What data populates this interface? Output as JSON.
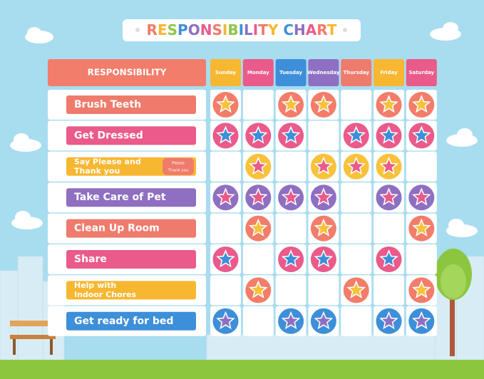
{
  "title": "RESPONSIBILITY CHART",
  "title_colors": [
    "#f07b6a",
    "#f7b731",
    "#8fc54a",
    "#3d8fd9",
    "#8e6fc2",
    "#ea5a8a"
  ],
  "header": "RESPONSIBILITY",
  "header_color": "#f27d6a",
  "days": [
    {
      "name": "Sunday",
      "color": "#f7b731"
    },
    {
      "name": "Monday",
      "color": "#ea5a8a"
    },
    {
      "name": "Tuesday",
      "color": "#3d8fd9"
    },
    {
      "name": "Wednesday",
      "color": "#8e6fc2"
    },
    {
      "name": "Thursday",
      "color": "#ef7b6c"
    },
    {
      "name": "Friday",
      "color": "#f7b731"
    },
    {
      "name": "Saturday",
      "color": "#ea5a8a"
    }
  ],
  "rows": [
    {
      "label": [
        "Brush Teeth"
      ],
      "color": "#ef7b6c",
      "badge": "#f27d6a",
      "star": "#f9c23c",
      "done": [
        true,
        false,
        true,
        true,
        false,
        true,
        true
      ]
    },
    {
      "label": [
        "Get Dressed"
      ],
      "color": "#ea5a8a",
      "badge": "#ea5a8a",
      "star": "#3d8fd9",
      "done": [
        true,
        true,
        true,
        false,
        true,
        true,
        true
      ]
    },
    {
      "label": [
        "Say Please and",
        "Thank you"
      ],
      "bubble": [
        "Please",
        "Thank you"
      ],
      "color": "#f7b731",
      "badge": "#f9c23c",
      "star": "#ea5a8a",
      "done": [
        false,
        true,
        false,
        true,
        true,
        true,
        false
      ]
    },
    {
      "label": [
        "Take Care of Pet"
      ],
      "color": "#8e6fc2",
      "badge": "#8e6fc2",
      "star": "#ea5a8a",
      "done": [
        true,
        true,
        true,
        true,
        false,
        true,
        true
      ]
    },
    {
      "label": [
        "Clean Up Room"
      ],
      "color": "#ef7b6c",
      "badge": "#f27d6a",
      "star": "#f9c23c",
      "done": [
        false,
        true,
        false,
        true,
        false,
        false,
        true
      ]
    },
    {
      "label": [
        "Share"
      ],
      "color": "#ea5a8a",
      "badge": "#ea5a8a",
      "star": "#3d8fd9",
      "done": [
        true,
        false,
        true,
        true,
        false,
        true,
        false
      ]
    },
    {
      "label": [
        "Help with",
        "Indoor Chores"
      ],
      "color": "#f7b731",
      "badge": "#f27d6a",
      "star": "#f9c23c",
      "done": [
        false,
        true,
        false,
        false,
        true,
        false,
        true
      ]
    },
    {
      "label": [
        "Get ready for bed"
      ],
      "color": "#3d8fd9",
      "badge": "#3d8fd9",
      "star": "#8e6fc2",
      "done": [
        true,
        false,
        true,
        true,
        false,
        true,
        true
      ]
    }
  ]
}
